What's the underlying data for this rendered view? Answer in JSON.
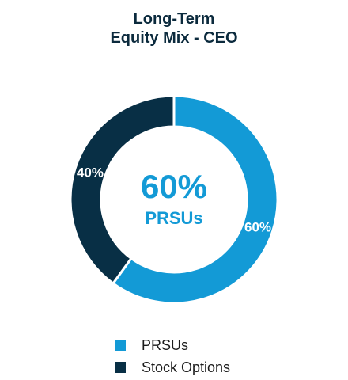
{
  "chart_data": {
    "type": "pie",
    "title_lines": [
      "Long-Term",
      "Equity Mix - CEO"
    ],
    "slices": [
      {
        "name": "PRSUs",
        "value": 60,
        "label": "60%",
        "color": "#139ad6"
      },
      {
        "name": "Stock Options",
        "value": 40,
        "label": "40%",
        "color": "#082f45"
      }
    ],
    "center": {
      "value": "60%",
      "label": "PRSUs",
      "color": "#139ad6"
    },
    "legend_placement": "bottom"
  }
}
